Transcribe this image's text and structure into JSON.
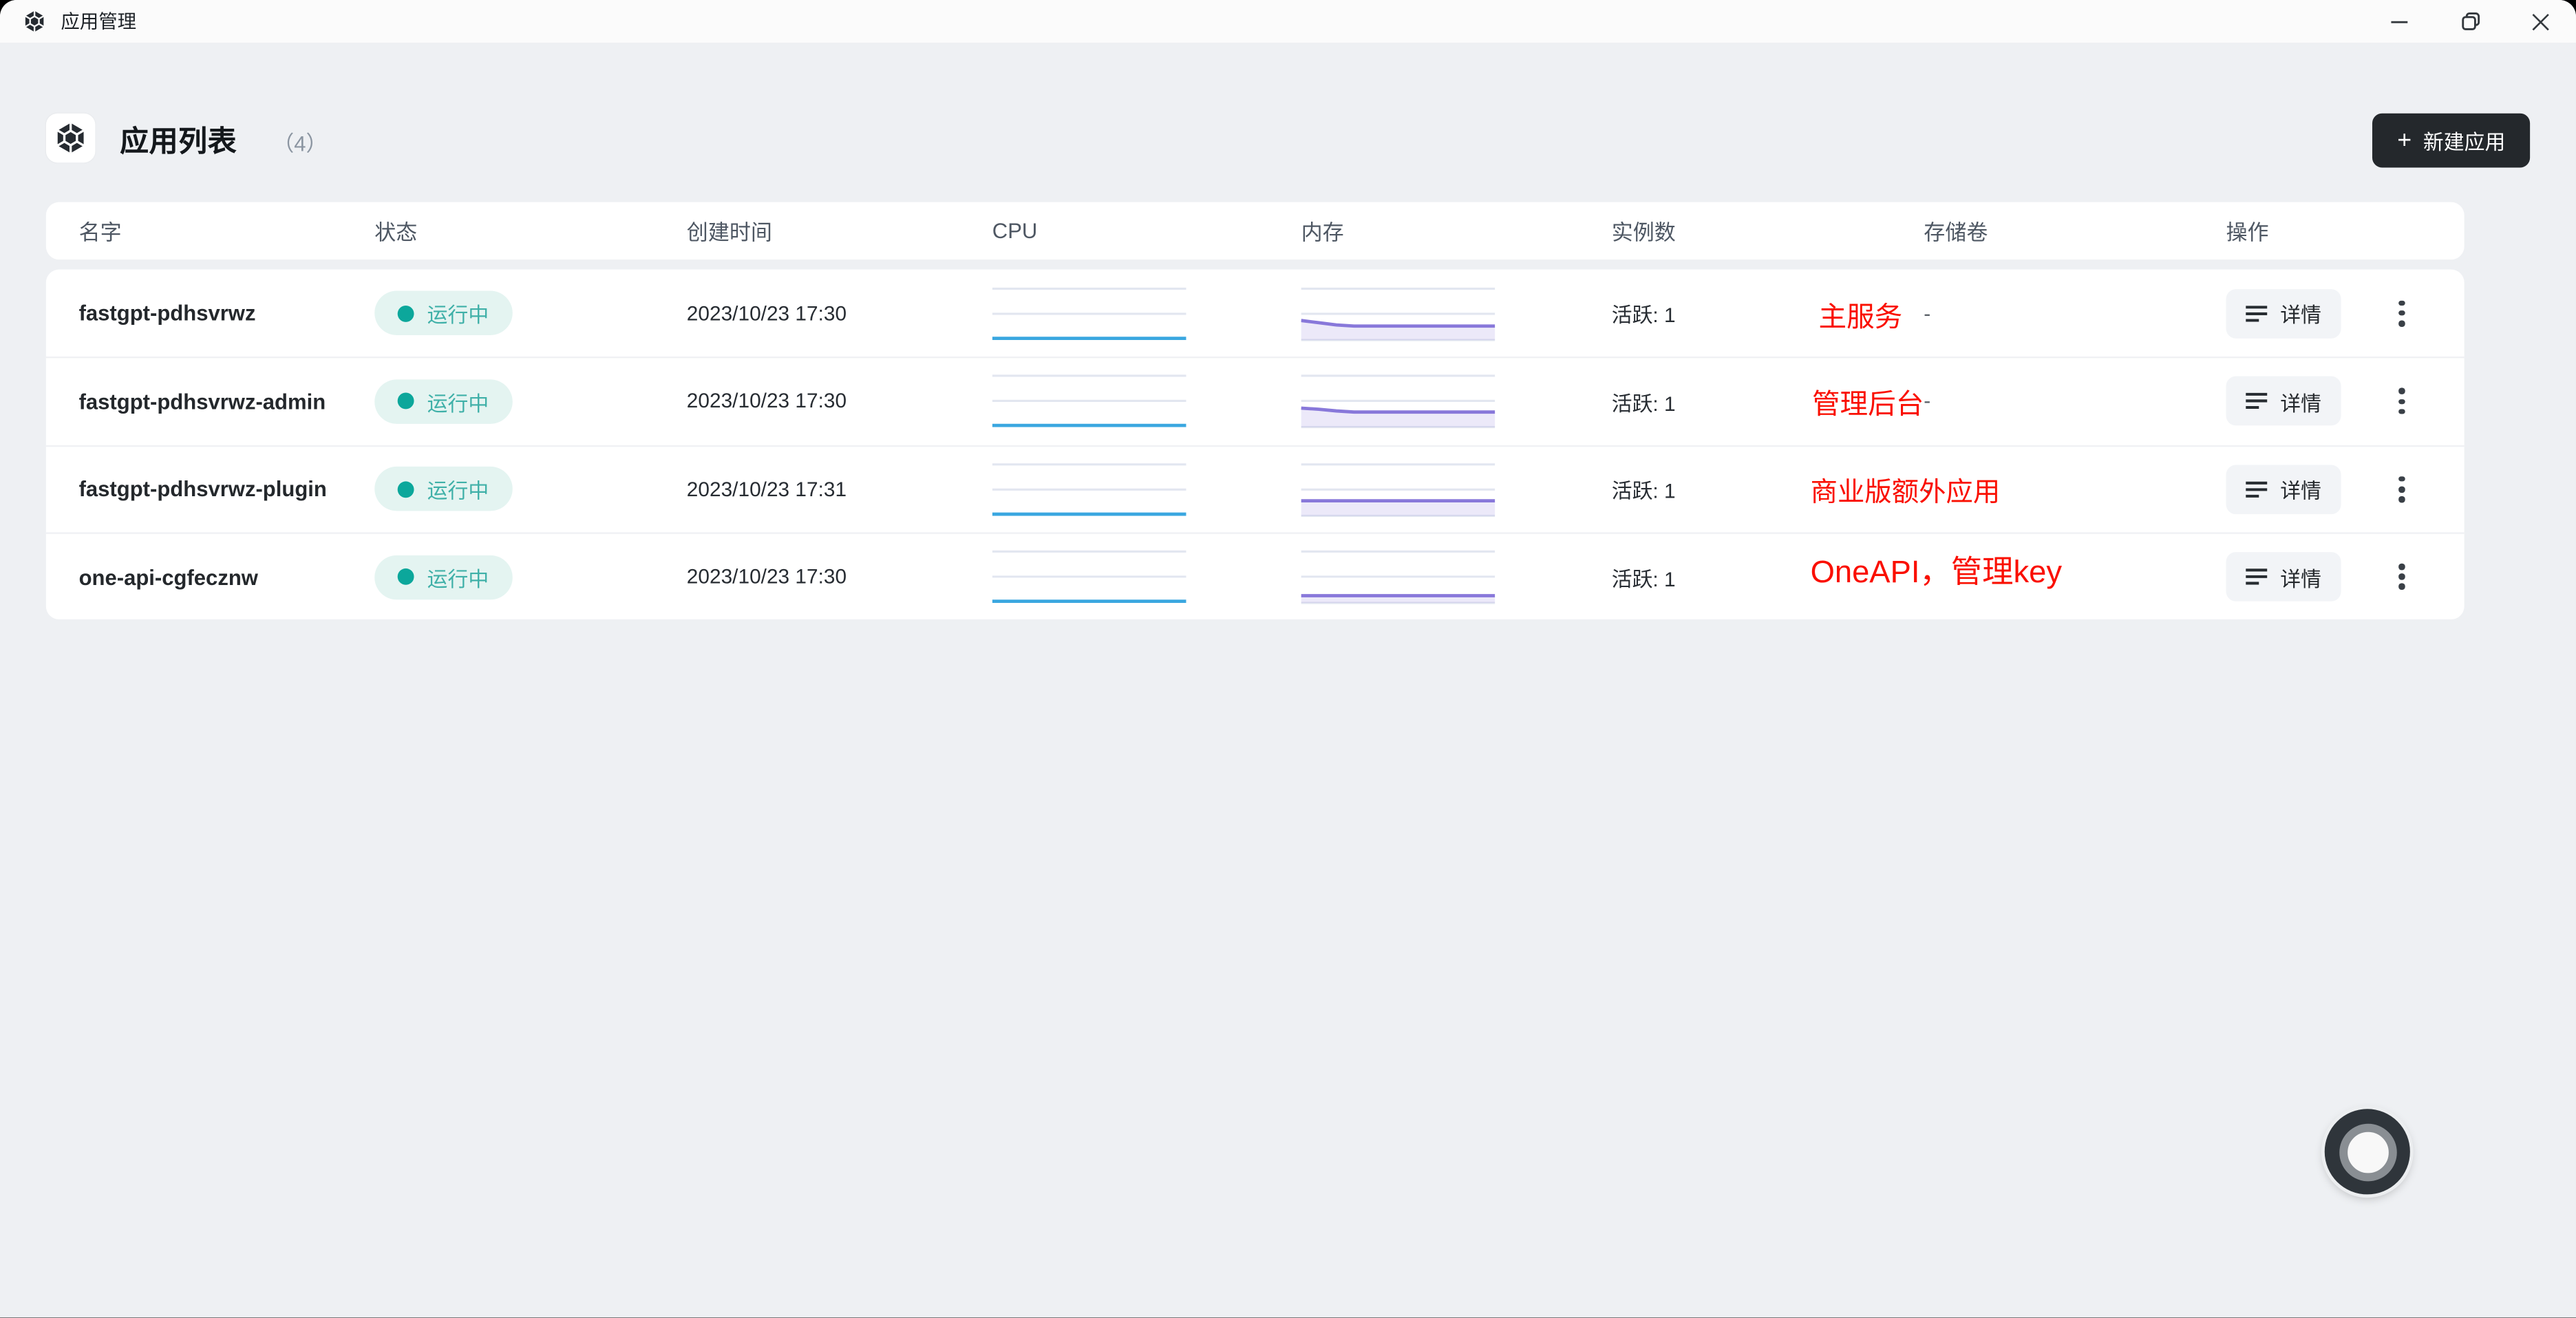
{
  "window": {
    "title": "应用管理"
  },
  "page": {
    "title": "应用列表",
    "count": "（4）",
    "new_app_button": "新建应用",
    "plus": "+"
  },
  "table": {
    "headers": {
      "name": "名字",
      "status": "状态",
      "created": "创建时间",
      "cpu": "CPU",
      "memory": "内存",
      "instances": "实例数",
      "volume": "存储卷",
      "actions": "操作"
    },
    "rows": [
      {
        "name": "fastgpt-pdhsvrwz",
        "status": "运行中",
        "created": "2023/10/23 17:30",
        "instances": "活跃: 1",
        "volume": "-",
        "annotation": "主服务",
        "detail": "详情"
      },
      {
        "name": "fastgpt-pdhsvrwz-admin",
        "status": "运行中",
        "created": "2023/10/23 17:30",
        "instances": "活跃: 1",
        "volume": "-",
        "annotation": "管理后台",
        "detail": "详情"
      },
      {
        "name": "fastgpt-pdhsvrwz-plugin",
        "status": "运行中",
        "created": "2023/10/23 17:31",
        "instances": "活跃: 1",
        "volume": "-",
        "annotation": "商业版额外应用",
        "detail": "详情"
      },
      {
        "name": "one-api-cgfecznw",
        "status": "运行中",
        "created": "2023/10/23 17:30",
        "instances": "活跃: 1",
        "volume": "-",
        "annotation": "OneAPI，管理key",
        "detail": "详情"
      }
    ]
  },
  "sparklines": {
    "grid_color": "#e2e6f0",
    "cpu": {
      "color": "#3aa7e0",
      "fill": "rgba(58,167,224,0.10)",
      "rows": [
        [
          0.94,
          0.94,
          0.94,
          0.94,
          0.94,
          0.94,
          0.94,
          0.94,
          0.94,
          0.94,
          0.94,
          0.94
        ],
        [
          0.94,
          0.94,
          0.94,
          0.94,
          0.94,
          0.94,
          0.94,
          0.94,
          0.94,
          0.94,
          0.94,
          0.94
        ],
        [
          0.94,
          0.94,
          0.94,
          0.94,
          0.94,
          0.94,
          0.94,
          0.94,
          0.94,
          0.94,
          0.94,
          0.94
        ],
        [
          0.94,
          0.94,
          0.94,
          0.94,
          0.94,
          0.94,
          0.94,
          0.94,
          0.94,
          0.94,
          0.94,
          0.94
        ]
      ]
    },
    "memory": {
      "color": "#8878da",
      "fill": "rgba(136,120,218,0.16)",
      "rows": [
        [
          0.62,
          0.66,
          0.7,
          0.72,
          0.72,
          0.72,
          0.72,
          0.72,
          0.72,
          0.72,
          0.72,
          0.72
        ],
        [
          0.63,
          0.65,
          0.68,
          0.7,
          0.7,
          0.7,
          0.7,
          0.7,
          0.7,
          0.7,
          0.7,
          0.7
        ],
        [
          0.7,
          0.7,
          0.7,
          0.7,
          0.7,
          0.7,
          0.7,
          0.7,
          0.7,
          0.7,
          0.7,
          0.7
        ],
        [
          0.84,
          0.84,
          0.84,
          0.84,
          0.84,
          0.84,
          0.84,
          0.84,
          0.84,
          0.84,
          0.84,
          0.84
        ]
      ]
    }
  },
  "colors": {
    "accent_red": "#fa0f00",
    "badge_bg": "#e4f4f1",
    "badge_dot": "#0ca79b",
    "badge_text": "#3fb0a8",
    "button_dark": "#24282c",
    "page_bg": "#eef0f3",
    "titlebar_bg": "#fbfbfb"
  }
}
